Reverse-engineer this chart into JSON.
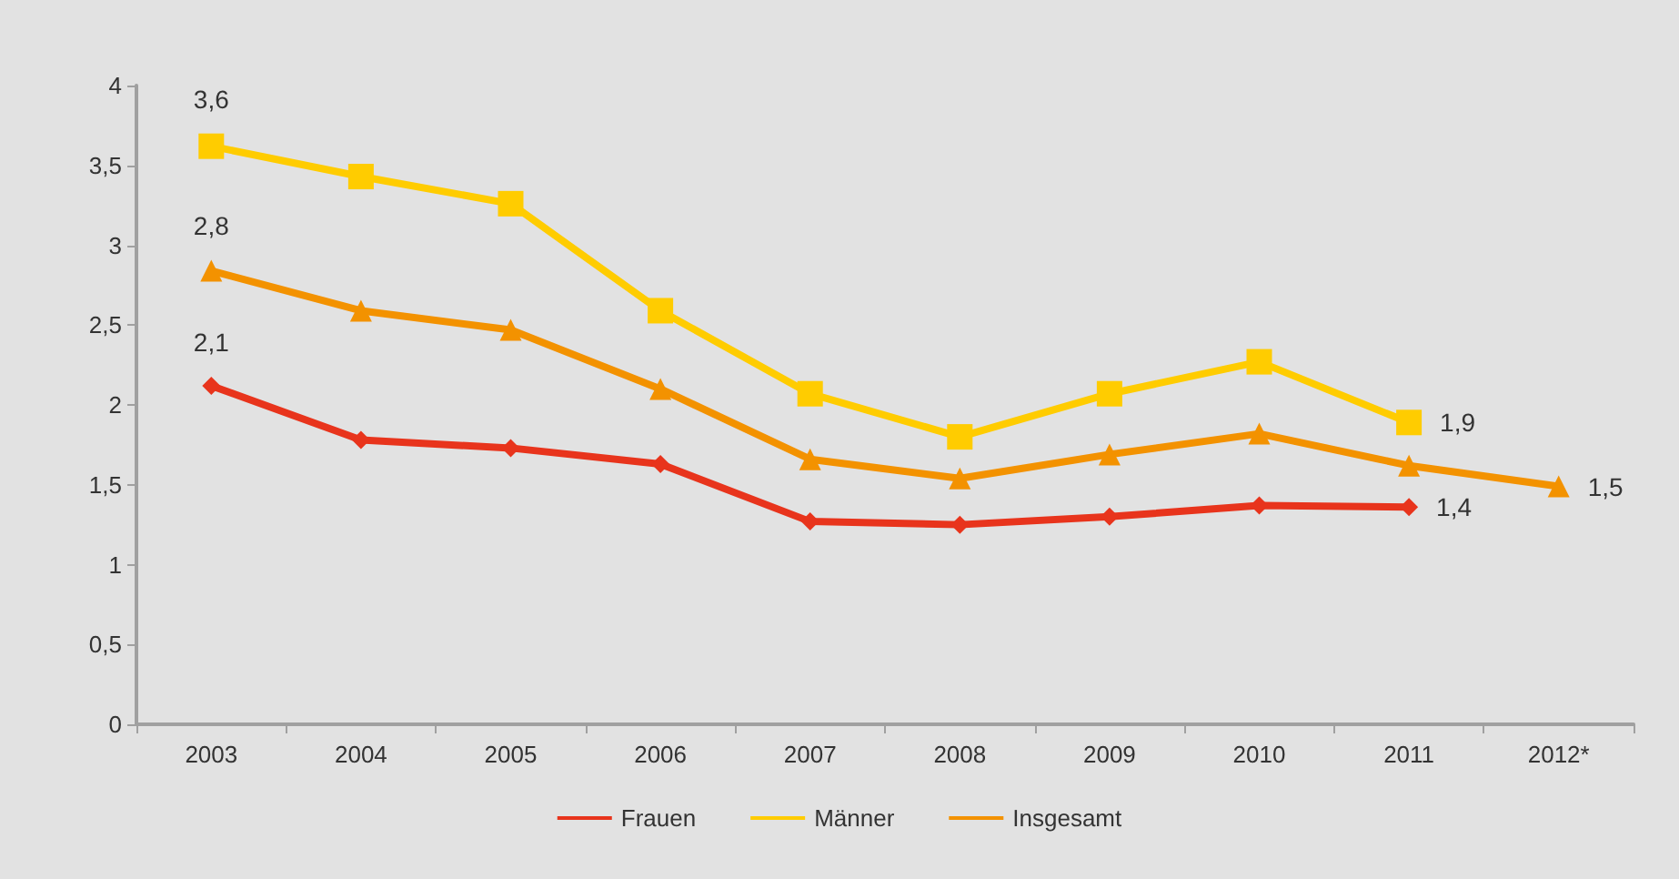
{
  "chart_data": {
    "type": "line",
    "categories": [
      "2003",
      "2004",
      "2005",
      "2006",
      "2007",
      "2008",
      "2009",
      "2010",
      "2011",
      "2012*"
    ],
    "series": [
      {
        "name": "Frauen",
        "color": "#e8341c",
        "marker": "diamond",
        "values": [
          2.12,
          1.78,
          1.73,
          1.63,
          1.27,
          1.25,
          1.3,
          1.37,
          1.36,
          null
        ],
        "value_labels": [
          "2,1",
          null,
          null,
          null,
          null,
          null,
          null,
          null,
          "1,4",
          null
        ]
      },
      {
        "name": "Männer",
        "color": "#ffcc00",
        "marker": "square",
        "values": [
          3.62,
          3.43,
          3.26,
          2.59,
          2.07,
          1.8,
          2.07,
          2.27,
          1.89,
          null
        ],
        "value_labels": [
          "3,6",
          null,
          null,
          null,
          null,
          null,
          null,
          null,
          "1,9",
          null
        ]
      },
      {
        "name": "Insgesamt",
        "color": "#f39200",
        "marker": "triangle",
        "values": [
          2.84,
          2.59,
          2.47,
          2.1,
          1.66,
          1.54,
          1.69,
          1.82,
          1.62,
          1.49
        ],
        "value_labels": [
          "2,8",
          null,
          null,
          null,
          null,
          null,
          null,
          null,
          null,
          "1,5"
        ]
      }
    ],
    "ylim": [
      0,
      4
    ],
    "yticks": [
      0,
      {
        "value": 0.5,
        "label": "0,5"
      },
      1,
      {
        "value": 1.5,
        "label": "1,5"
      },
      2,
      {
        "value": 2.5,
        "label": "2,5"
      },
      3,
      {
        "value": 3.5,
        "label": "3,5"
      },
      4
    ],
    "grid": false,
    "legend": "bottom",
    "line_style": "solid"
  }
}
